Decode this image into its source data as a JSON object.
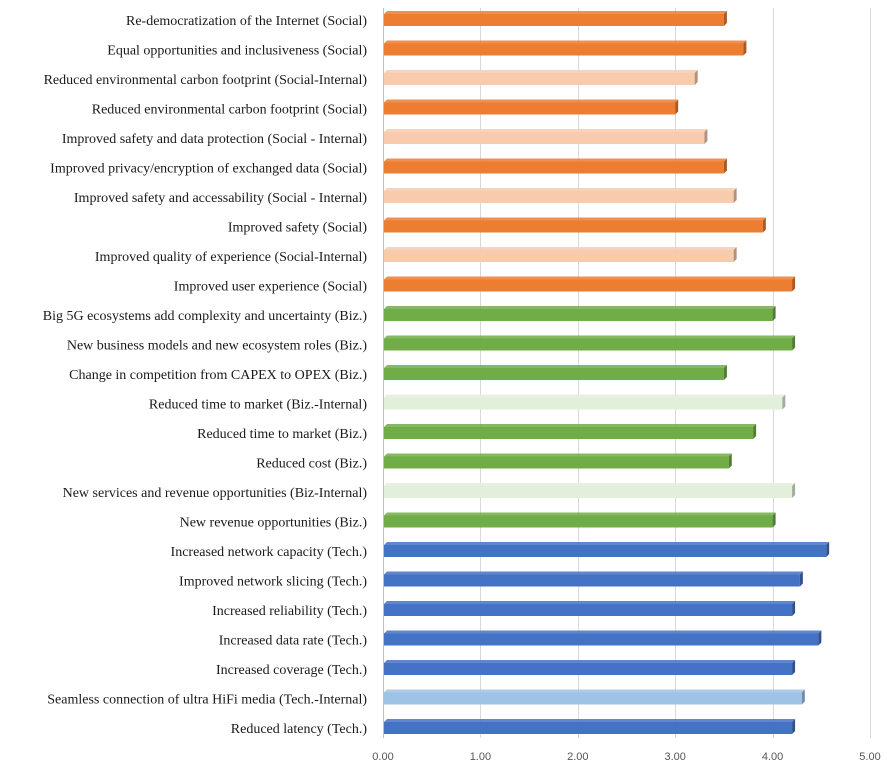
{
  "chart_data": {
    "type": "bar",
    "orientation": "horizontal",
    "title": "",
    "xlabel": "",
    "ylabel": "",
    "xlim": [
      0,
      5
    ],
    "xticks": [
      "0.00",
      "1.00",
      "2.00",
      "3.00",
      "4.00",
      "5.00"
    ],
    "grid": true,
    "legend": "none",
    "colors": {
      "social": "#ed7d31",
      "social_internal": "#f8cbad",
      "biz": "#70ad47",
      "biz_internal": "#e2efda",
      "tech": "#4472c4",
      "tech_internal": "#9dc3e6"
    },
    "bars": [
      {
        "label": "Re-democratization of the Internet (Social)",
        "value": 3.5,
        "group": "social"
      },
      {
        "label": "Equal opportunities and inclusiveness (Social)",
        "value": 3.7,
        "group": "social"
      },
      {
        "label": "Reduced environmental carbon footprint (Social-Internal)",
        "value": 3.2,
        "group": "social_internal"
      },
      {
        "label": "Reduced environmental carbon footprint (Social)",
        "value": 3.0,
        "group": "social"
      },
      {
        "label": "Improved safety and data protection (Social - Internal)",
        "value": 3.3,
        "group": "social_internal"
      },
      {
        "label": "Improved privacy/encryption of exchanged data (Social)",
        "value": 3.5,
        "group": "social"
      },
      {
        "label": "Improved safety and accessability (Social - Internal)",
        "value": 3.6,
        "group": "social_internal"
      },
      {
        "label": "Improved safety (Social)",
        "value": 3.9,
        "group": "social"
      },
      {
        "label": "Improved quality of experience (Social-Internal)",
        "value": 3.6,
        "group": "social_internal"
      },
      {
        "label": "Improved user experience (Social)",
        "value": 4.2,
        "group": "social"
      },
      {
        "label": "Big 5G ecosystems add complexity and uncertainty (Biz.)",
        "value": 4.0,
        "group": "biz"
      },
      {
        "label": "New business models and new ecosystem roles (Biz.)",
        "value": 4.2,
        "group": "biz"
      },
      {
        "label": "Change in competition from CAPEX to OPEX (Biz.)",
        "value": 3.5,
        "group": "biz"
      },
      {
        "label": "Reduced time to market (Biz.-Internal)",
        "value": 4.1,
        "group": "biz_internal"
      },
      {
        "label": "Reduced time to market (Biz.)",
        "value": 3.8,
        "group": "biz"
      },
      {
        "label": "Reduced cost (Biz.)",
        "value": 3.55,
        "group": "biz"
      },
      {
        "label": "New services and revenue opportunities (Biz-Internal)",
        "value": 4.2,
        "group": "biz_internal"
      },
      {
        "label": "New revenue opportunities (Biz.)",
        "value": 4.0,
        "group": "biz"
      },
      {
        "label": "Increased network capacity (Tech.)",
        "value": 4.55,
        "group": "tech"
      },
      {
        "label": "Improved network slicing (Tech.)",
        "value": 4.28,
        "group": "tech"
      },
      {
        "label": "Increased reliability (Tech.)",
        "value": 4.2,
        "group": "tech"
      },
      {
        "label": "Increased data rate (Tech.)",
        "value": 4.47,
        "group": "tech"
      },
      {
        "label": "Increased coverage (Tech.)",
        "value": 4.2,
        "group": "tech"
      },
      {
        "label": "Seamless connection of ultra HiFi media (Tech.-Internal)",
        "value": 4.3,
        "group": "tech_internal"
      },
      {
        "label": "Reduced latency (Tech.)",
        "value": 4.2,
        "group": "tech"
      }
    ]
  }
}
